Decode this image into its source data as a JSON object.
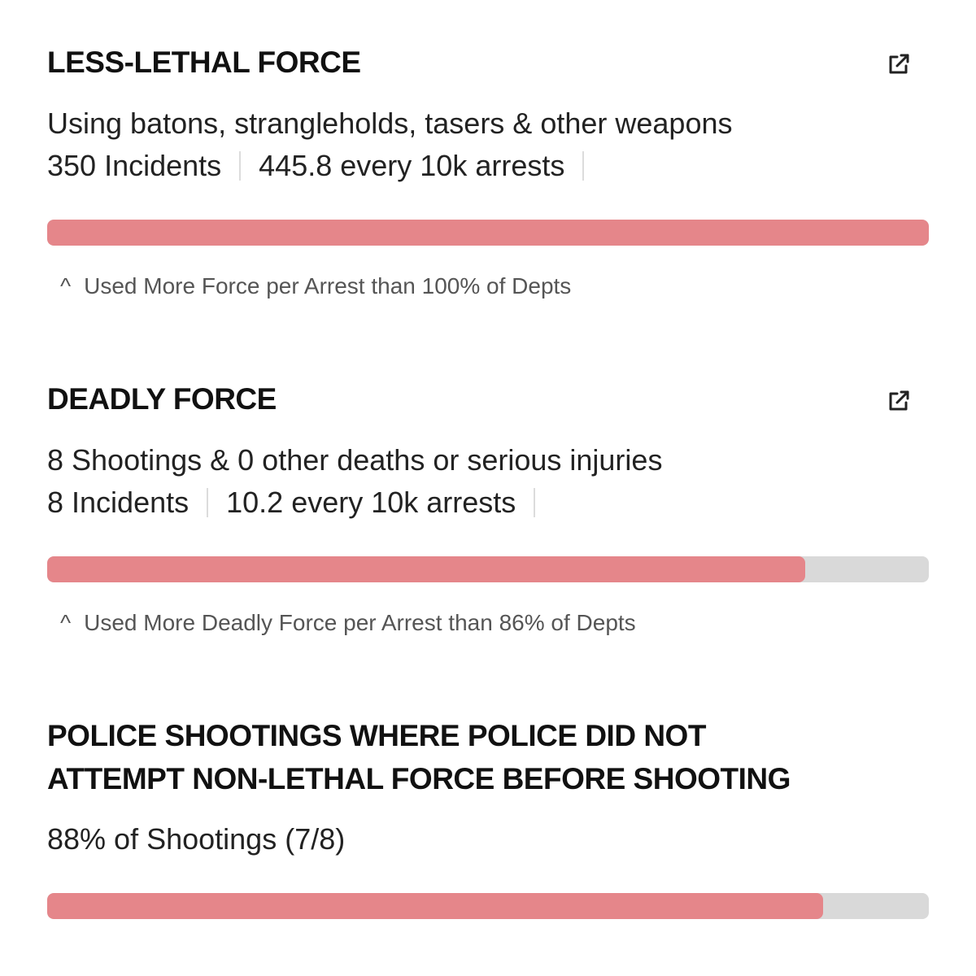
{
  "sections": [
    {
      "title": "LESS-LETHAL FORCE",
      "description": "Using batons, strangleholds, tasers & other weapons",
      "incidents": "350 Incidents",
      "rate": "445.8 every 10k arrests",
      "bar_fraction": 1.0,
      "note_caret": "^",
      "note": "Used More Force per Arrest than 100% of Depts",
      "icon": "external-link-icon"
    },
    {
      "title": "DEADLY FORCE",
      "description": "8 Shootings & 0 other deaths or serious injuries",
      "incidents": "8 Incidents",
      "rate": "10.2 every 10k arrests",
      "bar_fraction": 0.86,
      "note_caret": "^",
      "note": "Used More Deadly Force per Arrest than 86% of Depts",
      "icon": "external-link-icon"
    },
    {
      "title_line1": "POLICE SHOOTINGS WHERE POLICE DID NOT",
      "title_line2": "ATTEMPT NON-LETHAL FORCE BEFORE SHOOTING",
      "description": "88% of Shootings (7/8)",
      "bar_fraction": 0.88
    }
  ],
  "colors": {
    "bar_fill": "#e5868a",
    "bar_track": "#d9d9d9",
    "separator": "#dcdcdc"
  }
}
